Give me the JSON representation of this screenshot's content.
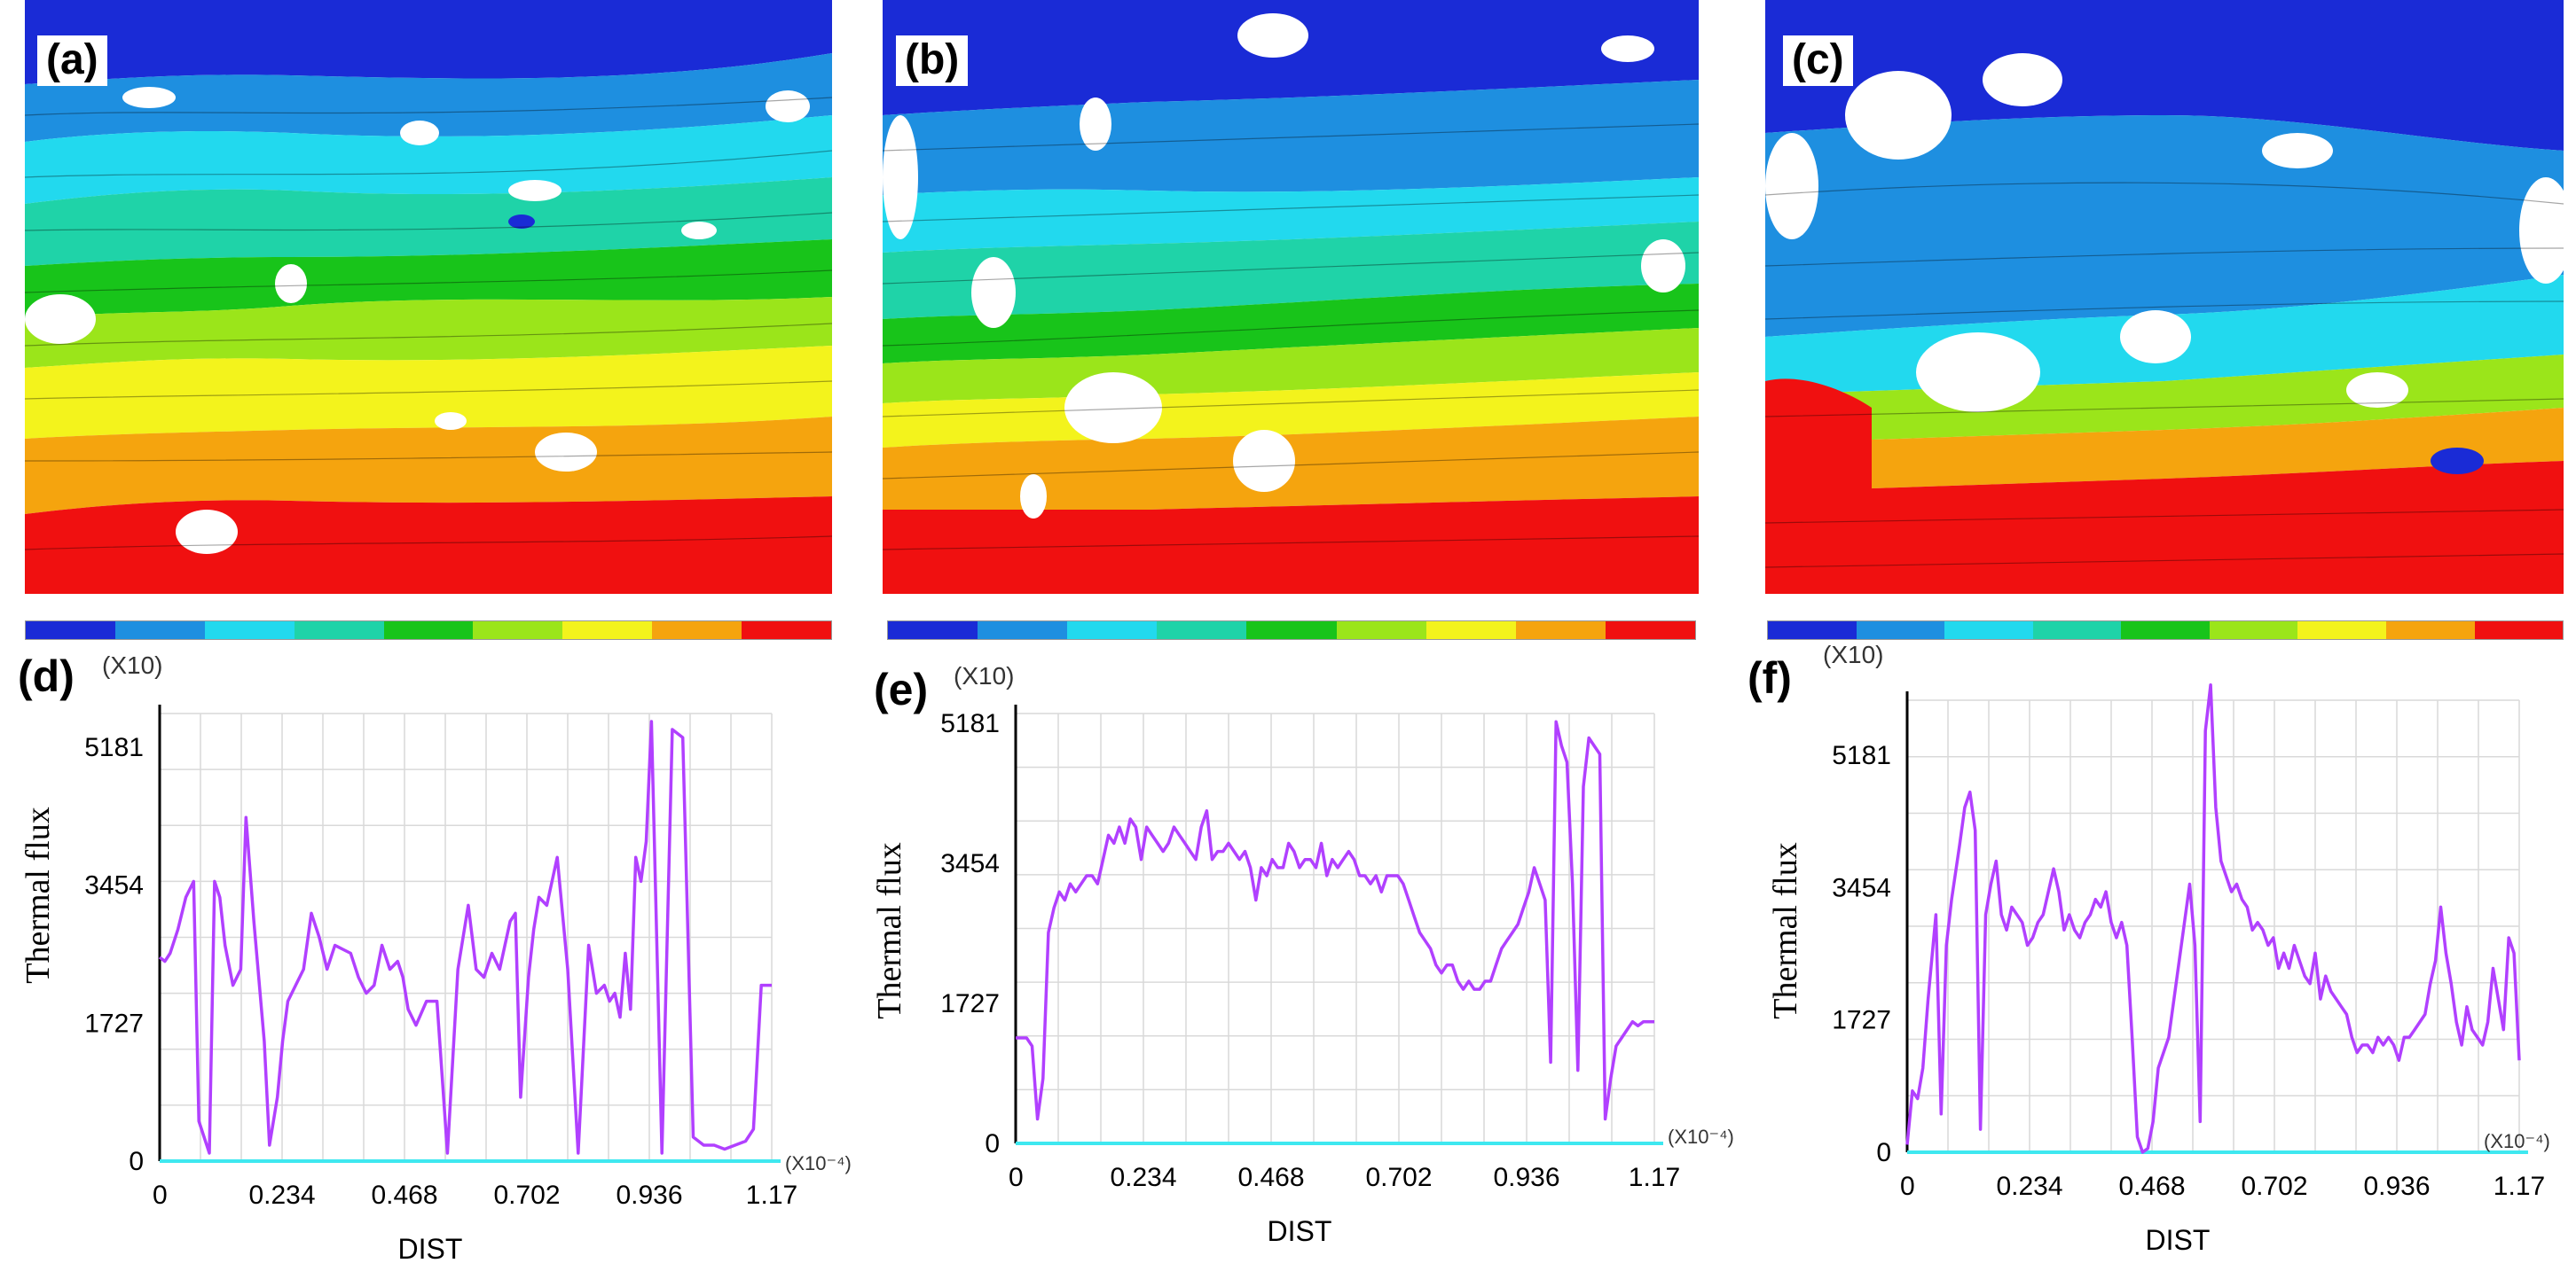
{
  "figure": {
    "panels_top": [
      {
        "label": "(a)"
      },
      {
        "label": "(b)"
      },
      {
        "label": "(c)"
      }
    ],
    "colorbar_colors": [
      "#1a2bd6",
      "#1e8fe0",
      "#22d9ee",
      "#1fd3a8",
      "#18c41a",
      "#9be51a",
      "#f3f31c",
      "#f5a40e",
      "#f01010"
    ],
    "plot_color": "#b140ff",
    "axis_color": "#3ee8f0"
  },
  "chart_data": [
    {
      "type": "line",
      "panel": "(d)",
      "multiplier_label": "(X10)",
      "ylabel": "Thermal flux",
      "xlabel": "DIST",
      "x_multiplier": "(X10⁻⁴)",
      "x_ticks": [
        "0",
        "0.234",
        "0.468",
        "0.702",
        "0.936",
        "1.17"
      ],
      "y_ticks": [
        "0",
        "1727",
        "3454",
        "5181"
      ],
      "xlim": [
        0,
        1.17
      ],
      "ylim": [
        0,
        5600
      ],
      "x": [
        0,
        0.01,
        0.02,
        0.035,
        0.05,
        0.065,
        0.075,
        0.085,
        0.095,
        0.105,
        0.115,
        0.125,
        0.14,
        0.155,
        0.165,
        0.18,
        0.2,
        0.21,
        0.225,
        0.235,
        0.245,
        0.26,
        0.275,
        0.29,
        0.305,
        0.32,
        0.335,
        0.35,
        0.365,
        0.38,
        0.395,
        0.41,
        0.425,
        0.44,
        0.455,
        0.465,
        0.475,
        0.49,
        0.51,
        0.53,
        0.55,
        0.57,
        0.59,
        0.605,
        0.62,
        0.635,
        0.65,
        0.66,
        0.67,
        0.68,
        0.69,
        0.705,
        0.715,
        0.725,
        0.74,
        0.76,
        0.78,
        0.8,
        0.82,
        0.835,
        0.85,
        0.86,
        0.87,
        0.88,
        0.89,
        0.9,
        0.91,
        0.92,
        0.93,
        0.94,
        0.96,
        0.98,
        1.0,
        1.02,
        1.04,
        1.06,
        1.08,
        1.1,
        1.12,
        1.135,
        1.15,
        1.17
      ],
      "y": [
        2550,
        2500,
        2600,
        2900,
        3300,
        3500,
        500,
        300,
        100,
        3500,
        3300,
        2700,
        2200,
        2400,
        4300,
        3000,
        1500,
        200,
        800,
        1500,
        2000,
        2200,
        2400,
        3100,
        2800,
        2400,
        2700,
        2650,
        2600,
        2300,
        2100,
        2200,
        2700,
        2400,
        2500,
        2300,
        1900,
        1700,
        2000,
        2000,
        100,
        2400,
        3200,
        2400,
        2300,
        2600,
        2400,
        2700,
        3000,
        3100,
        800,
        2300,
        2900,
        3300,
        3200,
        3800,
        2400,
        100,
        2700,
        2100,
        2200,
        2000,
        2100,
        1800,
        2600,
        1900,
        3800,
        3500,
        4000,
        5500,
        100,
        5400,
        5300,
        300,
        200,
        200,
        150,
        200,
        250,
        400,
        2200,
        2200
      ],
      "line_color": "#b140ff"
    },
    {
      "type": "line",
      "panel": "(e)",
      "multiplier_label": "(X10)",
      "ylabel": "Thermal flux",
      "xlabel": "DIST",
      "x_multiplier": "(X10⁻⁴)",
      "x_ticks": [
        "0",
        "0.234",
        "0.468",
        "0.702",
        "0.936",
        "1.17"
      ],
      "y_ticks": [
        "0",
        "1727",
        "3454",
        "5181"
      ],
      "xlim": [
        0,
        1.17
      ],
      "ylim": [
        0,
        5300
      ],
      "x": [
        0,
        0.01,
        0.02,
        0.03,
        0.04,
        0.05,
        0.06,
        0.07,
        0.08,
        0.09,
        0.1,
        0.11,
        0.12,
        0.13,
        0.14,
        0.15,
        0.16,
        0.17,
        0.18,
        0.19,
        0.2,
        0.21,
        0.22,
        0.23,
        0.24,
        0.25,
        0.26,
        0.27,
        0.28,
        0.29,
        0.3,
        0.31,
        0.32,
        0.33,
        0.34,
        0.35,
        0.36,
        0.37,
        0.38,
        0.39,
        0.4,
        0.41,
        0.42,
        0.43,
        0.44,
        0.45,
        0.46,
        0.47,
        0.48,
        0.49,
        0.5,
        0.51,
        0.52,
        0.53,
        0.54,
        0.55,
        0.56,
        0.57,
        0.58,
        0.59,
        0.6,
        0.61,
        0.62,
        0.63,
        0.64,
        0.65,
        0.66,
        0.67,
        0.68,
        0.69,
        0.7,
        0.71,
        0.72,
        0.73,
        0.74,
        0.75,
        0.76,
        0.77,
        0.78,
        0.79,
        0.8,
        0.81,
        0.82,
        0.83,
        0.84,
        0.85,
        0.86,
        0.87,
        0.88,
        0.89,
        0.9,
        0.91,
        0.92,
        0.93,
        0.94,
        0.95,
        0.96,
        0.97,
        0.98,
        0.99,
        1.0,
        1.01,
        1.02,
        1.03,
        1.04,
        1.05,
        1.06,
        1.07,
        1.08,
        1.09,
        1.1,
        1.11,
        1.12,
        1.13,
        1.14,
        1.15,
        1.16,
        1.17
      ],
      "y": [
        1300,
        1300,
        1300,
        1200,
        300,
        800,
        2600,
        2900,
        3100,
        3000,
        3200,
        3100,
        3200,
        3300,
        3300,
        3200,
        3500,
        3800,
        3700,
        3900,
        3700,
        4000,
        3900,
        3500,
        3900,
        3800,
        3700,
        3600,
        3700,
        3900,
        3800,
        3700,
        3600,
        3500,
        3900,
        4100,
        3500,
        3600,
        3600,
        3700,
        3600,
        3500,
        3600,
        3400,
        3000,
        3400,
        3300,
        3500,
        3400,
        3400,
        3700,
        3600,
        3400,
        3500,
        3500,
        3400,
        3700,
        3300,
        3500,
        3400,
        3500,
        3600,
        3500,
        3300,
        3300,
        3200,
        3300,
        3100,
        3300,
        3300,
        3300,
        3200,
        3000,
        2800,
        2600,
        2500,
        2400,
        2200,
        2100,
        2200,
        2200,
        2000,
        1900,
        2000,
        1900,
        1900,
        2000,
        2000,
        2200,
        2400,
        2500,
        2600,
        2700,
        2900,
        3100,
        3400,
        3200,
        3000,
        1000,
        5200,
        4900,
        4700,
        3200,
        900,
        4400,
        5000,
        4900,
        4800,
        300,
        800,
        1200,
        1300,
        1400,
        1500,
        1450,
        1500,
        1500,
        1500
      ],
      "line_color": "#b140ff"
    },
    {
      "type": "line",
      "panel": "(f)",
      "multiplier_label": "(X10)",
      "ylabel": "Thermal flux",
      "xlabel": "DIST",
      "x_multiplier": "(X10⁻⁴)",
      "x_ticks": [
        "0",
        "0.234",
        "0.468",
        "0.702",
        "0.936",
        "1.17"
      ],
      "y_ticks": [
        "0",
        "1727",
        "3454",
        "5181"
      ],
      "xlim": [
        0,
        1.17
      ],
      "ylim": [
        0,
        5900
      ],
      "x": [
        0,
        0.01,
        0.02,
        0.03,
        0.04,
        0.055,
        0.065,
        0.075,
        0.085,
        0.1,
        0.11,
        0.12,
        0.13,
        0.14,
        0.15,
        0.16,
        0.17,
        0.18,
        0.19,
        0.2,
        0.21,
        0.22,
        0.23,
        0.24,
        0.25,
        0.26,
        0.27,
        0.28,
        0.29,
        0.3,
        0.31,
        0.32,
        0.33,
        0.34,
        0.35,
        0.36,
        0.37,
        0.38,
        0.39,
        0.4,
        0.41,
        0.42,
        0.43,
        0.44,
        0.45,
        0.46,
        0.47,
        0.48,
        0.49,
        0.5,
        0.51,
        0.52,
        0.53,
        0.54,
        0.55,
        0.56,
        0.57,
        0.58,
        0.59,
        0.6,
        0.61,
        0.62,
        0.63,
        0.64,
        0.65,
        0.66,
        0.67,
        0.68,
        0.69,
        0.7,
        0.71,
        0.72,
        0.73,
        0.74,
        0.75,
        0.76,
        0.77,
        0.78,
        0.79,
        0.8,
        0.81,
        0.82,
        0.83,
        0.84,
        0.85,
        0.86,
        0.87,
        0.88,
        0.89,
        0.9,
        0.91,
        0.92,
        0.93,
        0.94,
        0.95,
        0.96,
        0.97,
        0.98,
        0.99,
        1.0,
        1.01,
        1.02,
        1.03,
        1.04,
        1.05,
        1.06,
        1.07,
        1.08,
        1.09,
        1.1,
        1.11,
        1.12,
        1.13,
        1.14,
        1.15,
        1.16,
        1.17
      ],
      "y": [
        100,
        800,
        700,
        1100,
        2000,
        3100,
        500,
        2700,
        3300,
        4000,
        4500,
        4700,
        4200,
        300,
        3100,
        3500,
        3800,
        3100,
        2900,
        3200,
        3100,
        3000,
        2700,
        2800,
        3000,
        3100,
        3400,
        3700,
        3400,
        2900,
        3100,
        2900,
        2800,
        3000,
        3100,
        3300,
        3200,
        3400,
        3000,
        2800,
        3000,
        2700,
        1500,
        200,
        0,
        50,
        400,
        1100,
        1300,
        1500,
        2000,
        2500,
        3000,
        3500,
        2700,
        400,
        5500,
        6100,
        4500,
        3800,
        3600,
        3400,
        3500,
        3300,
        3200,
        2900,
        3000,
        2900,
        2700,
        2800,
        2400,
        2600,
        2400,
        2700,
        2500,
        2300,
        2200,
        2600,
        2000,
        2300,
        2100,
        2000,
        1900,
        1800,
        1500,
        1300,
        1400,
        1400,
        1300,
        1500,
        1400,
        1500,
        1400,
        1200,
        1500,
        1500,
        1600,
        1700,
        1800,
        2200,
        2500,
        3200,
        2600,
        2200,
        1700,
        1400,
        1900,
        1600,
        1500,
        1400,
        1700,
        2400,
        2000,
        1600,
        2800,
        2600,
        1200
      ],
      "line_color": "#b140ff"
    }
  ]
}
